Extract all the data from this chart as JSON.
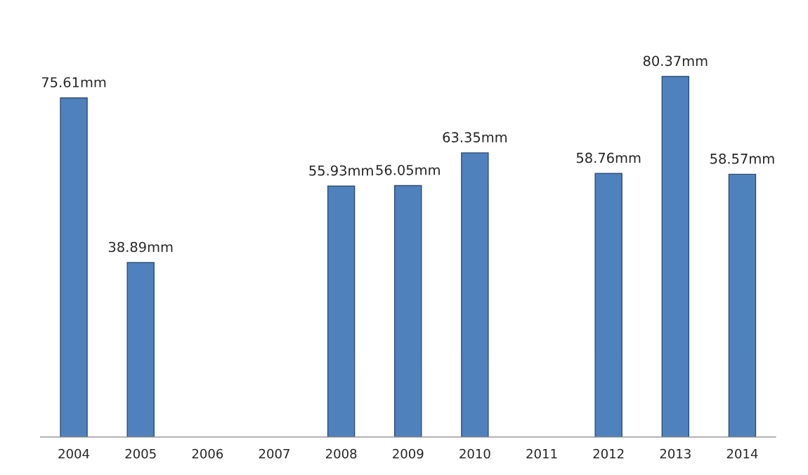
{
  "chart_data": {
    "type": "bar",
    "categories": [
      "2004",
      "2005",
      "2006",
      "2007",
      "2008",
      "2009",
      "2010",
      "2011",
      "2012",
      "2013",
      "2014"
    ],
    "values": [
      75.61,
      38.89,
      null,
      null,
      55.93,
      56.05,
      63.35,
      null,
      58.76,
      80.37,
      58.57
    ],
    "value_labels": [
      "75.61mm",
      "38.89mm",
      null,
      null,
      "55.93mm",
      "56.05mm",
      "63.35mm",
      null,
      "58.76mm",
      "80.37mm",
      "58.57mm"
    ],
    "color": "#4f81bd",
    "grid": false,
    "legend": false
  }
}
